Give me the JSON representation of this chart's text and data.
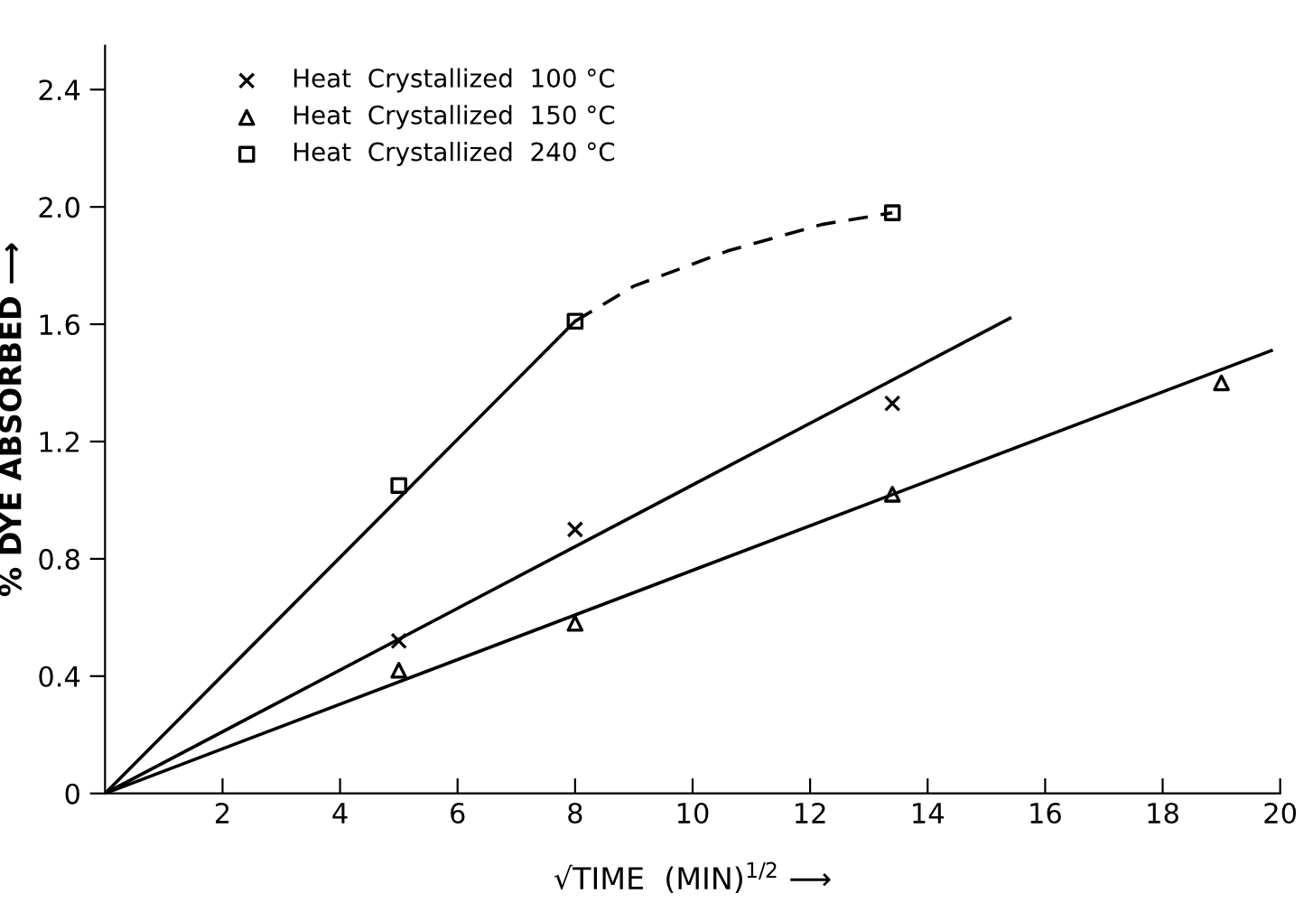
{
  "chart_data": {
    "type": "scatter",
    "xlabel": "√TIME  (MIN)$^{1/2}$ ⟶",
    "ylabel": "% DYE ABSORBED ⟶",
    "xlim": [
      0,
      20
    ],
    "xticks": [
      2,
      4,
      6,
      8,
      10,
      12,
      14,
      16,
      18,
      20
    ],
    "ylim": [
      0,
      2.55
    ],
    "yticks": [
      0,
      0.4,
      0.8,
      1.2,
      1.6,
      {
        "value": 2.0,
        "label": "2.0"
      },
      2.4
    ],
    "grid": false,
    "legend": "top left",
    "series": [
      {
        "name": "Heat  Crystallized  100 °C",
        "color": "#000000",
        "marker": "cross",
        "x": [
          5,
          8,
          13.4
        ],
        "values": [
          0.52,
          0.9,
          1.33
        ]
      },
      {
        "name": "Heat  Crystallized  150 °C",
        "color": "#000000",
        "marker": "triangle",
        "x": [
          5,
          8,
          13.4,
          19.0
        ],
        "values": [
          0.42,
          0.58,
          1.02,
          1.4
        ]
      },
      {
        "name": "Heat  Crystallized  240 °C",
        "color": "#000000",
        "marker": "square",
        "x": [
          5,
          8,
          13.4
        ],
        "values": [
          1.05,
          1.61,
          1.98
        ]
      },
      {
        "type": "line",
        "color": "#000000",
        "line_style": "solid",
        "x": [
          0,
          15.4
        ],
        "values": [
          0,
          1.62
        ]
      },
      {
        "type": "line",
        "color": "#000000",
        "line_style": "solid",
        "x": [
          0,
          19.85
        ],
        "values": [
          0,
          1.51
        ]
      },
      {
        "type": "line",
        "color": "#000000",
        "line_style": "solid",
        "x": [
          0,
          8
        ],
        "values": [
          0,
          1.61
        ]
      },
      {
        "type": "line",
        "color": "#000000",
        "line_style": "dashed",
        "x": [
          8,
          9,
          10.6,
          12.2,
          13.4
        ],
        "values": [
          1.61,
          1.73,
          1.85,
          1.94,
          1.98
        ]
      }
    ]
  }
}
